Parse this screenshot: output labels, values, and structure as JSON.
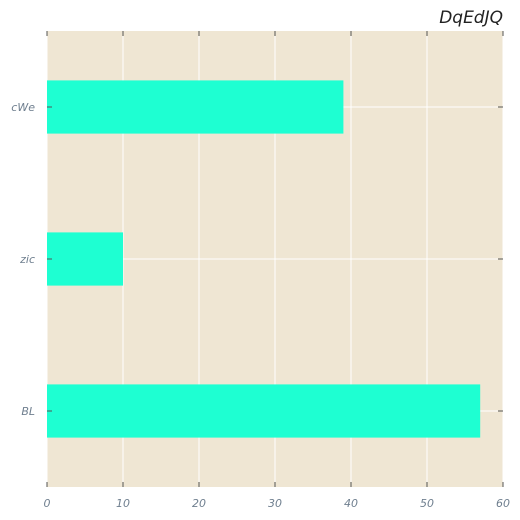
{
  "chart_data": {
    "type": "bar",
    "orientation": "horizontal",
    "title": "DqEdJQ",
    "xlabel": "",
    "ylabel": "",
    "categories": [
      "cWe",
      "zic",
      "BL"
    ],
    "values": [
      39,
      10,
      57
    ],
    "xlim": [
      0,
      60
    ],
    "xticks": [
      0,
      10,
      20,
      30,
      40,
      50,
      60
    ],
    "grid": true,
    "legend": "none",
    "colors": {
      "bar": "#1effd2",
      "background": "#efe6d3",
      "grid": "#ffffff",
      "tick_text": "#6f7f8f",
      "tick_mark": "#555555"
    }
  }
}
